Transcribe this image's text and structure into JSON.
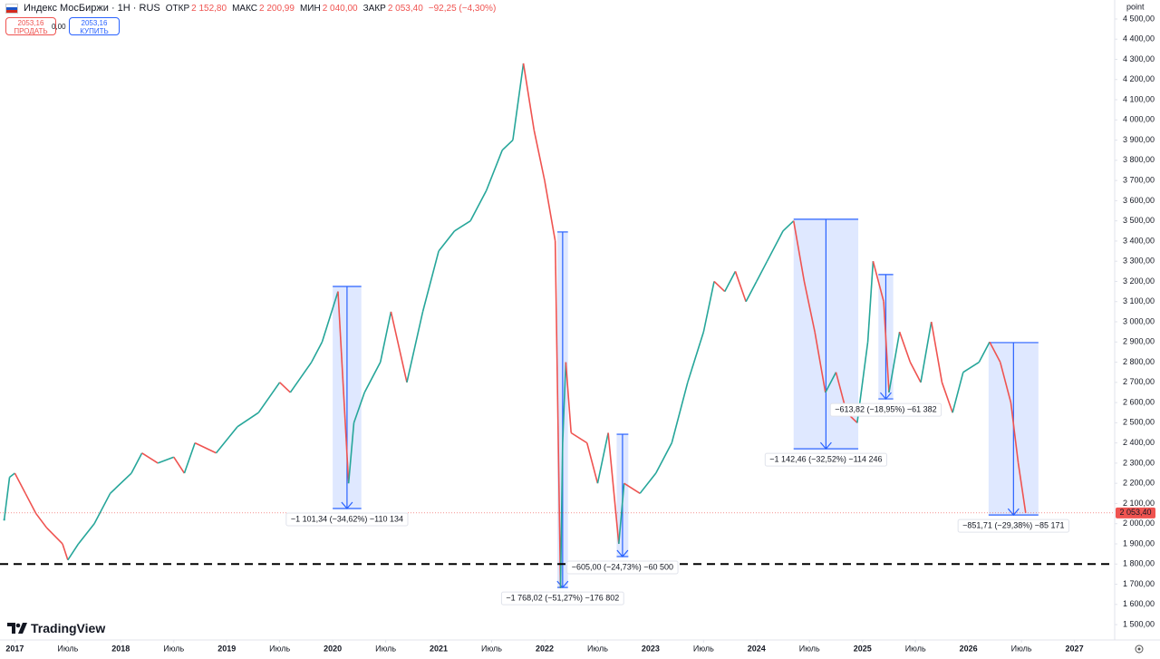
{
  "header": {
    "symbol": "Индекс МосБиржи · 1H · RUS",
    "open_label": "ОТКР",
    "open": "2 152,80",
    "high_label": "МАКС",
    "high": "2 200,99",
    "low_label": "МИН",
    "low": "2 040,00",
    "close_label": "ЗАКР",
    "close": "2 053,40",
    "change": "−92,25 (−4,30%)"
  },
  "trade_panel": {
    "sell_price": "2053,16",
    "sell": "ПРОДАТЬ",
    "spread": "0,00",
    "buy_price": "2053,16",
    "buy": "КУПИТЬ"
  },
  "branding": "TradingView",
  "chart_data": {
    "type": "line",
    "unit": "point",
    "up_color": "#26a69a",
    "down_color": "#ef5350",
    "grid": false,
    "x": [
      2016.9,
      2016.95,
      2017.0,
      2017.1,
      2017.2,
      2017.3,
      2017.45,
      2017.5,
      2017.6,
      2017.75,
      2017.9,
      2018.1,
      2018.2,
      2018.35,
      2018.5,
      2018.6,
      2018.7,
      2018.9,
      2019.1,
      2019.3,
      2019.5,
      2019.6,
      2019.8,
      2019.9,
      2020.05,
      2020.15,
      2020.2,
      2020.3,
      2020.45,
      2020.55,
      2020.7,
      2020.85,
      2021.0,
      2021.15,
      2021.3,
      2021.45,
      2021.6,
      2021.7,
      2021.8,
      2021.9,
      2022.0,
      2022.1,
      2022.15,
      2022.17,
      2022.2,
      2022.25,
      2022.4,
      2022.5,
      2022.6,
      2022.7,
      2022.75,
      2022.9,
      2023.05,
      2023.2,
      2023.35,
      2023.5,
      2023.6,
      2023.7,
      2023.8,
      2023.9,
      2024.0,
      2024.1,
      2024.25,
      2024.35,
      2024.45,
      2024.55,
      2024.65,
      2024.75,
      2024.85,
      2024.95,
      2025.05,
      2025.1,
      2025.2,
      2025.25,
      2025.35,
      2025.45,
      2025.55,
      2025.65,
      2025.75,
      2025.85,
      2025.95,
      2026.1,
      2026.2,
      2026.3,
      2026.4,
      2026.47,
      2026.54
    ],
    "values": [
      2020,
      2230,
      2250,
      2150,
      2050,
      1980,
      1900,
      1820,
      1900,
      2000,
      2150,
      2250,
      2350,
      2300,
      2330,
      2250,
      2400,
      2350,
      2480,
      2550,
      2700,
      2650,
      2800,
      2900,
      3150,
      2200,
      2500,
      2650,
      2800,
      3050,
      2700,
      3050,
      3350,
      3450,
      3500,
      3650,
      3850,
      3900,
      4280,
      3950,
      3700,
      3400,
      1680,
      2400,
      2800,
      2450,
      2400,
      2200,
      2450,
      1900,
      2200,
      2150,
      2250,
      2400,
      2700,
      2950,
      3200,
      3150,
      3250,
      3100,
      3200,
      3300,
      3450,
      3500,
      3200,
      2950,
      2650,
      2750,
      2550,
      2500,
      2900,
      3300,
      3100,
      2650,
      2950,
      2800,
      2700,
      3000,
      2700,
      2550,
      2750,
      2800,
      2900,
      2800,
      2600,
      2300,
      2053.4
    ],
    "last_price": {
      "value": 2053.4,
      "label": "2 053,40"
    },
    "hline": 1800,
    "annotations": [
      {
        "label": "−1 101,34 (−34,62%) −110 134",
        "x": [
          2020.0,
          2020.27
        ],
        "y": [
          3175,
          2075
        ]
      },
      {
        "label": "−1 768,02 (−51,27%) −176 802",
        "x": [
          2022.12,
          2022.22
        ],
        "y": [
          3445,
          1684
        ]
      },
      {
        "label": "−605,00 (−24,73%) −60 500",
        "x": [
          2022.68,
          2022.79
        ],
        "y": [
          2443,
          1837
        ]
      },
      {
        "label": "−1 142,46 (−32,52%) −114 246",
        "x": [
          2024.35,
          2024.96
        ],
        "y": [
          3508,
          2371
        ]
      },
      {
        "label": "−613,82 (−18,95%) −61 382",
        "x": [
          2025.15,
          2025.29
        ],
        "y": [
          3234,
          2618
        ]
      },
      {
        "label": "−851,71 (−29,38%) −85 171",
        "x": [
          2026.19,
          2026.66
        ],
        "y": [
          2897,
          2043
        ]
      }
    ],
    "xlim": [
      2016.86,
      2027.38
    ],
    "ylim": [
      1424,
      4594
    ],
    "xticks": [
      2017,
      {
        "value": 2017.5,
        "label": "Июль"
      },
      2018,
      {
        "value": 2018.5,
        "label": "Июль"
      },
      2019,
      {
        "value": 2019.5,
        "label": "Июль"
      },
      2020,
      {
        "value": 2020.5,
        "label": "Июль"
      },
      2021,
      {
        "value": 2021.5,
        "label": "Июль"
      },
      2022,
      {
        "value": 2022.5,
        "label": "Июль"
      },
      2023,
      {
        "value": 2023.5,
        "label": "Июль"
      },
      2024,
      {
        "value": 2024.5,
        "label": "Июль"
      },
      2025,
      {
        "value": 2025.5,
        "label": "Июль"
      },
      2026,
      {
        "value": 2026.5,
        "label": "Июль"
      },
      2027
    ],
    "yticks": [
      {
        "value": 1500,
        "label": "1 500,00"
      },
      {
        "value": 1600,
        "label": "1 600,00"
      },
      {
        "value": 1700,
        "label": "1 700,00"
      },
      {
        "value": 1800,
        "label": "1 800,00"
      },
      {
        "value": 1900,
        "label": "1 900,00"
      },
      {
        "value": 2000,
        "label": "2 000,00"
      },
      {
        "value": 2100,
        "label": "2 100,00"
      },
      {
        "value": 2200,
        "label": "2 200,00"
      },
      {
        "value": 2300,
        "label": "2 300,00"
      },
      {
        "value": 2400,
        "label": "2 400,00"
      },
      {
        "value": 2500,
        "label": "2 500,00"
      },
      {
        "value": 2600,
        "label": "2 600,00"
      },
      {
        "value": 2700,
        "label": "2 700,00"
      },
      {
        "value": 2800,
        "label": "2 800,00"
      },
      {
        "value": 2900,
        "label": "2 900,00"
      },
      {
        "value": 3000,
        "label": "3 000,00"
      },
      {
        "value": 3100,
        "label": "3 100,00"
      },
      {
        "value": 3200,
        "label": "3 200,00"
      },
      {
        "value": 3300,
        "label": "3 300,00"
      },
      {
        "value": 3400,
        "label": "3 400,00"
      },
      {
        "value": 3500,
        "label": "3 500,00"
      },
      {
        "value": 3600,
        "label": "3 600,00"
      },
      {
        "value": 3700,
        "label": "3 700,00"
      },
      {
        "value": 3800,
        "label": "3 800,00"
      },
      {
        "value": 3900,
        "label": "3 900,00"
      },
      {
        "value": 4000,
        "label": "4 000,00"
      },
      {
        "value": 4100,
        "label": "4 100,00"
      },
      {
        "value": 4200,
        "label": "4 200,00"
      },
      {
        "value": 4300,
        "label": "4 300,00"
      },
      {
        "value": 4400,
        "label": "4 400,00"
      },
      {
        "value": 4500,
        "label": "4 500,00"
      }
    ]
  }
}
